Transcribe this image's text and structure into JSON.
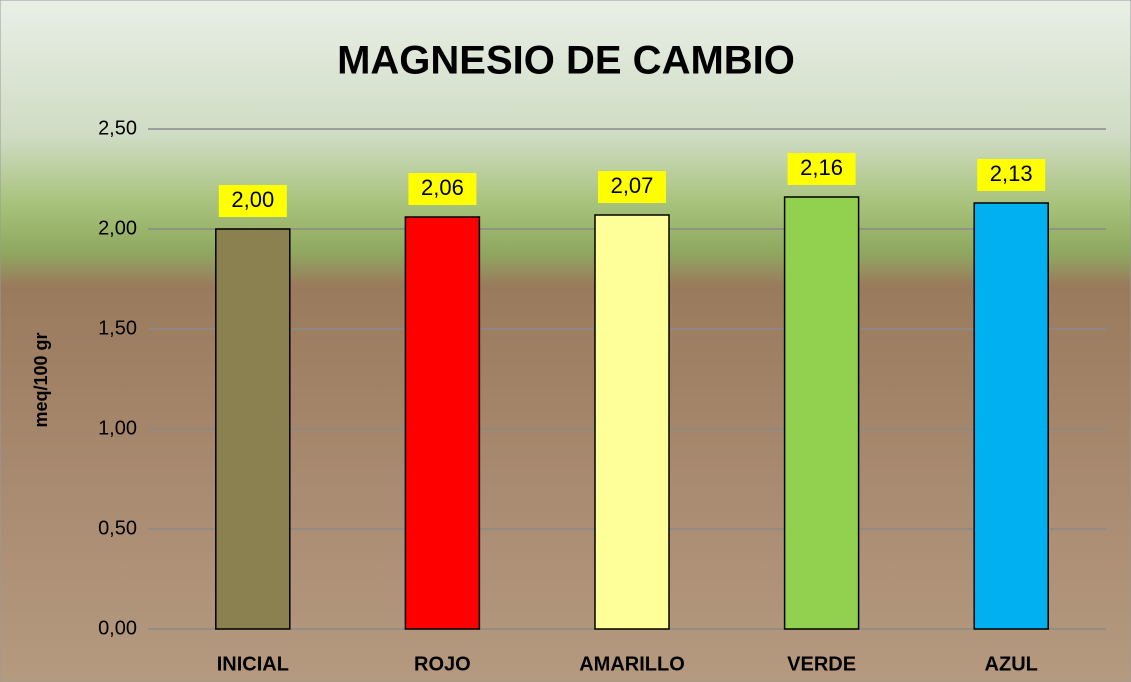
{
  "chart_data": {
    "type": "bar",
    "title": "MAGNESIO DE CAMBIO",
    "y_label": "meq/100 gr",
    "categories": [
      "INICIAL",
      "ROJO",
      "AMARILLO",
      "VERDE",
      "AZUL"
    ],
    "values": [
      2.0,
      2.06,
      2.07,
      2.16,
      2.13
    ],
    "value_labels": [
      "2,00",
      "2,06",
      "2,07",
      "2,16",
      "2,13"
    ],
    "colors": [
      "#8b8050",
      "#ff0000",
      "#ffff99",
      "#92d050",
      "#00b0f0"
    ],
    "ylim": [
      0,
      2.5
    ],
    "yticks": [
      {
        "value": 0,
        "label": "0,00"
      },
      {
        "value": 0.5,
        "label": "0,50"
      },
      {
        "value": 1,
        "label": "1,00"
      },
      {
        "value": 1.5,
        "label": "1,50"
      },
      {
        "value": 2,
        "label": "2,00"
      },
      {
        "value": 2.5,
        "label": "2,50"
      }
    ],
    "grid": true
  }
}
